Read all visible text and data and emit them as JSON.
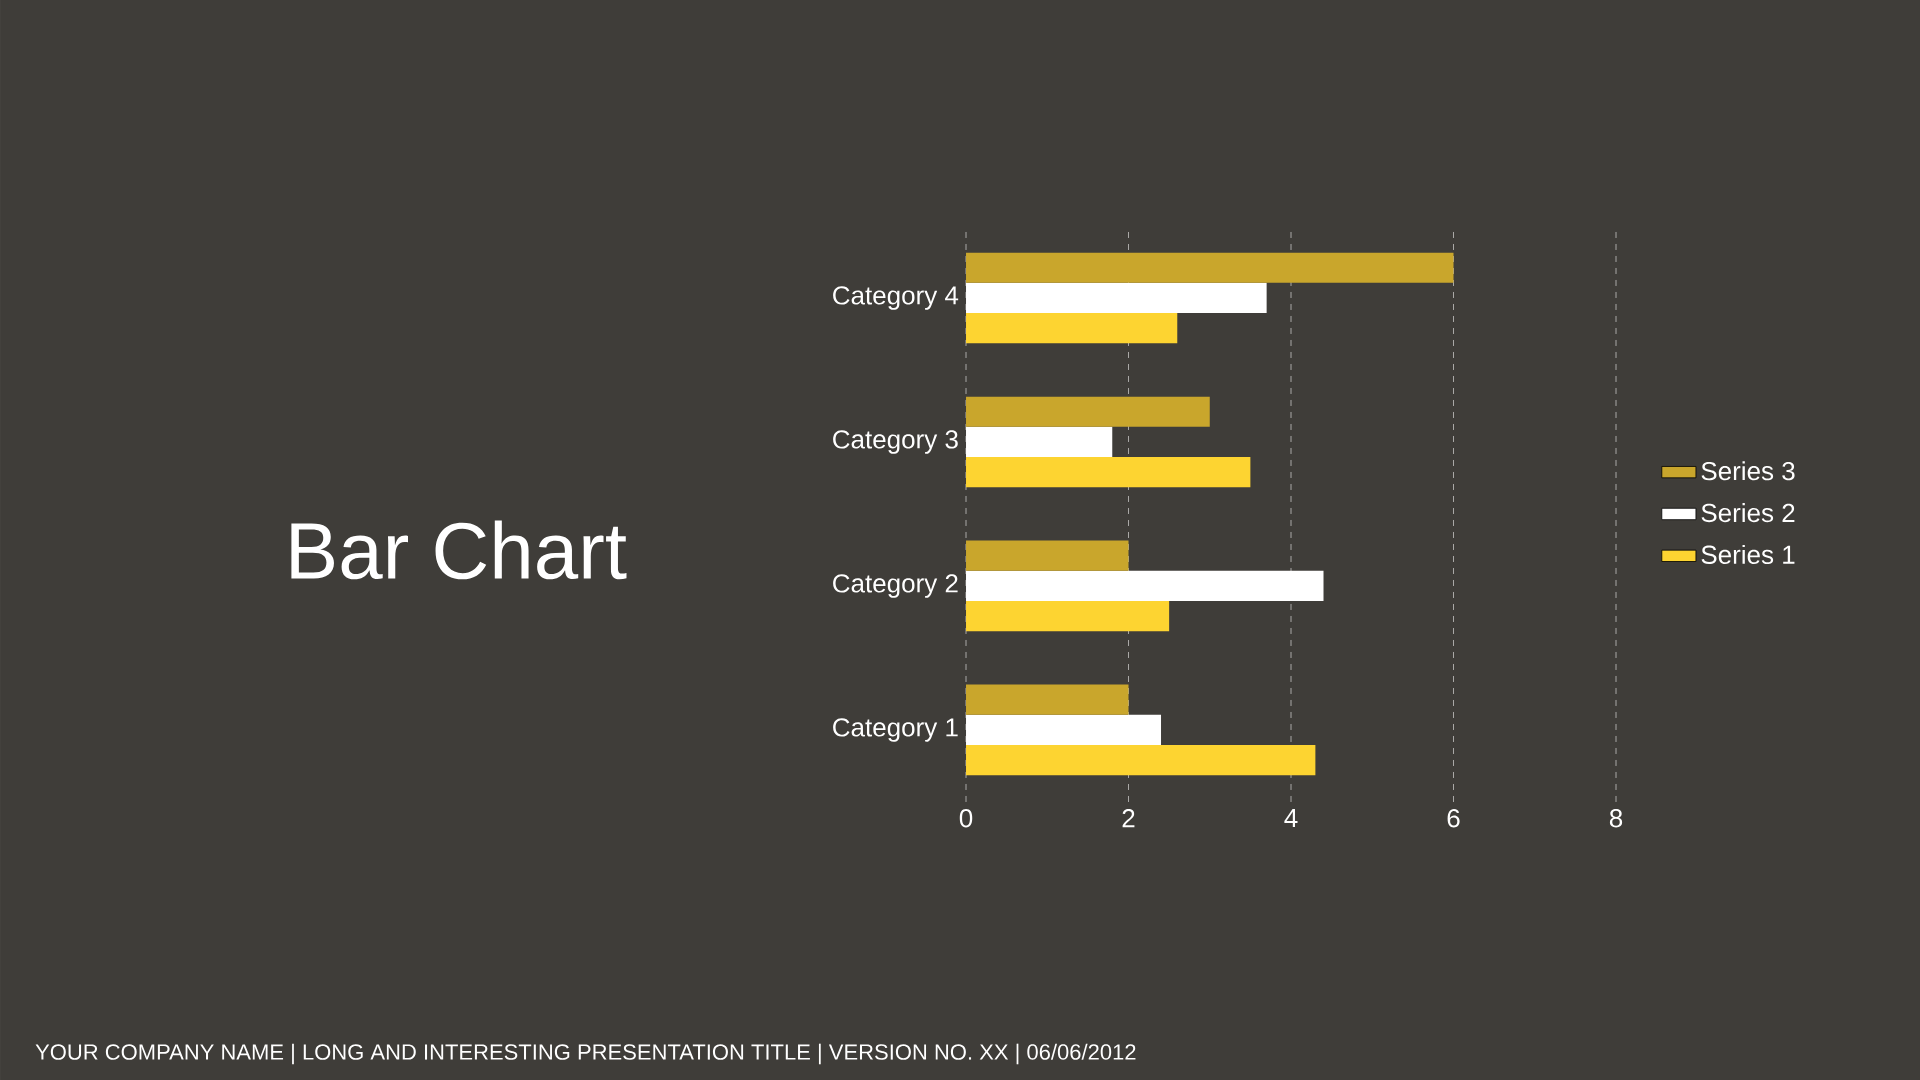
{
  "chart_data": {
    "type": "bar",
    "orientation": "horizontal",
    "title": "Bar Chart",
    "categories": [
      "Category 4",
      "Category 3",
      "Category 2",
      "Category 1"
    ],
    "series": [
      {
        "name": "Series 1",
        "color": "#fdd431",
        "values": [
          2.6,
          3.5,
          2.5,
          4.3
        ]
      },
      {
        "name": "Series 2",
        "color": "#ffffff",
        "values": [
          3.7,
          1.8,
          4.4,
          2.4
        ]
      },
      {
        "name": "Series 3",
        "color": "#c9a62c",
        "values": [
          6,
          3,
          2,
          2
        ]
      }
    ],
    "xlim": [
      0,
      8
    ],
    "xticks": [
      0,
      2,
      4,
      6,
      8
    ],
    "grid": "x",
    "legend": "right",
    "annotations": [
      "YOUR COMPANY NAME  |  LONG AND INTERESTING PRESENTATION TITLE  |  VERSION NO. XX  |  06/06/2012"
    ]
  }
}
